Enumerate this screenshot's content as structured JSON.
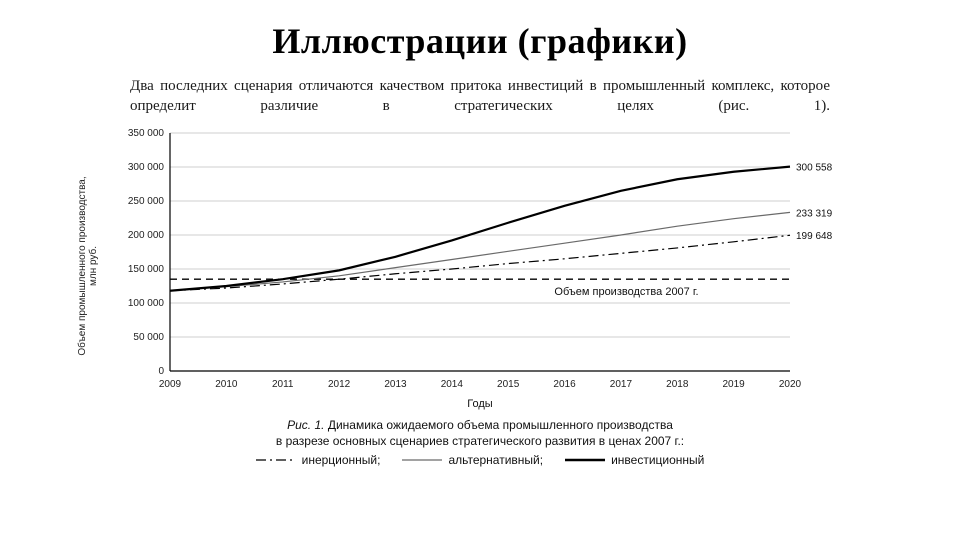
{
  "title": "Иллюстрации (графики)",
  "intro_text": "Два последних сценария отличаются качеством притока инвестиций в промышленный комплекс, которое определит различие в стратегических целях (рис. 1).",
  "caption": {
    "fig_label": "Рис. 1.",
    "line1": "Динамика ожидаемого объема промышленного производства",
    "line2": "в разрезе основных сценариев стратегического развития в ценах 2007 г.:"
  },
  "legend": [
    {
      "style": "dashdot",
      "label": "инерционный;"
    },
    {
      "style": "thin",
      "label": "альтернативный;"
    },
    {
      "style": "thick",
      "label": "инвестиционный"
    }
  ],
  "chart": {
    "type": "line",
    "xlabel": "Годы",
    "ylabel": "Объем промышленного производства,\\nмлн руб.",
    "x_ticks": [
      2009,
      2010,
      2011,
      2012,
      2013,
      2014,
      2015,
      2016,
      2017,
      2018,
      2019,
      2020
    ],
    "y_ticks": [
      0,
      50000,
      100000,
      150000,
      200000,
      250000,
      300000,
      350000
    ],
    "y_tick_labels": [
      "0",
      "50 000",
      "100 000",
      "150 000",
      "200 000",
      "250 000",
      "300 000",
      "350 000"
    ],
    "ylim": [
      0,
      350000
    ],
    "xlim": [
      2009,
      2020
    ],
    "grid_color": "#cfcfcf",
    "axis_color": "#000000",
    "background_color": "#ffffff",
    "tick_font_size": 10,
    "label_font_size": 11,
    "reference_line": {
      "y": 135000,
      "label": "Объем производства 2007 г.",
      "dash": "7,5",
      "color": "#000000",
      "width": 1.3
    },
    "series": [
      {
        "name": "инерционный",
        "style": "dashdot",
        "color": "#000000",
        "width": 1.2,
        "dash": "10,4,2,4",
        "end_label": "199 648",
        "data": [
          [
            2009,
            118000
          ],
          [
            2010,
            122000
          ],
          [
            2011,
            128000
          ],
          [
            2012,
            135000
          ],
          [
            2013,
            143000
          ],
          [
            2014,
            150000
          ],
          [
            2015,
            158000
          ],
          [
            2016,
            165000
          ],
          [
            2017,
            173000
          ],
          [
            2018,
            181000
          ],
          [
            2019,
            190000
          ],
          [
            2020,
            199648
          ]
        ]
      },
      {
        "name": "альтернативный",
        "style": "thin",
        "color": "#6a6a6a",
        "width": 1.2,
        "dash": null,
        "end_label": "233 319",
        "data": [
          [
            2009,
            118000
          ],
          [
            2010,
            124000
          ],
          [
            2011,
            131000
          ],
          [
            2012,
            140000
          ],
          [
            2013,
            152000
          ],
          [
            2014,
            164000
          ],
          [
            2015,
            176000
          ],
          [
            2016,
            188000
          ],
          [
            2017,
            200000
          ],
          [
            2018,
            213000
          ],
          [
            2019,
            224000
          ],
          [
            2020,
            233319
          ]
        ]
      },
      {
        "name": "инвестиционный",
        "style": "thick",
        "color": "#000000",
        "width": 2.2,
        "dash": null,
        "end_label": "300 558",
        "data": [
          [
            2009,
            118000
          ],
          [
            2010,
            125000
          ],
          [
            2011,
            135000
          ],
          [
            2012,
            148000
          ],
          [
            2013,
            168000
          ],
          [
            2014,
            192000
          ],
          [
            2015,
            218000
          ],
          [
            2016,
            243000
          ],
          [
            2017,
            265000
          ],
          [
            2018,
            282000
          ],
          [
            2019,
            293000
          ],
          [
            2020,
            300558
          ]
        ]
      }
    ]
  }
}
